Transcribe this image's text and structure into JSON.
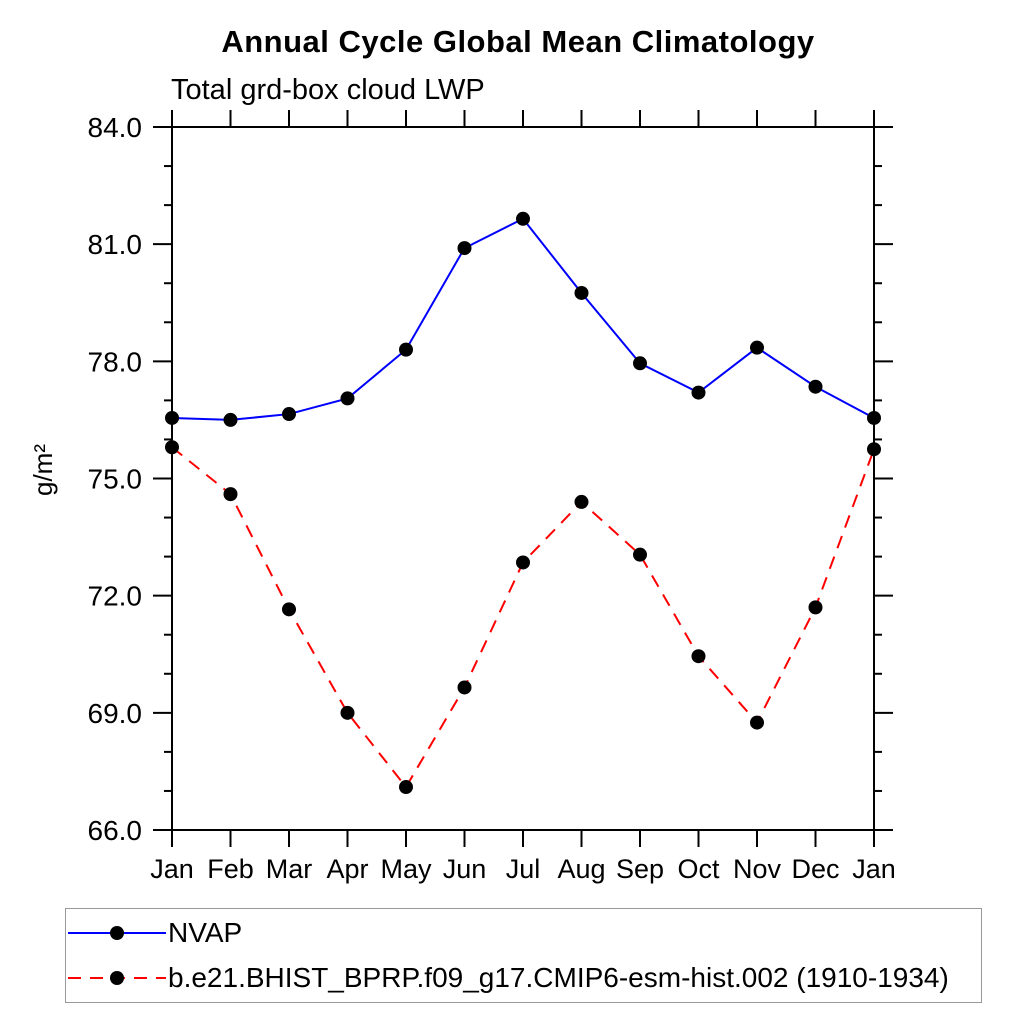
{
  "chart_data": {
    "type": "line",
    "title": "Annual Cycle Global Mean Climatology",
    "subtitle": "Total grd-box cloud LWP",
    "ylabel": "g/m²",
    "xlabel": "",
    "categories": [
      "Jan",
      "Feb",
      "Mar",
      "Apr",
      "May",
      "Jun",
      "Jul",
      "Aug",
      "Sep",
      "Oct",
      "Nov",
      "Dec",
      "Jan"
    ],
    "ylim": [
      66.0,
      84.0
    ],
    "y_major_step": 3.0,
    "y_minor_step": 1.0,
    "y_tick_labels": [
      "66.0",
      "69.0",
      "72.0",
      "75.0",
      "78.0",
      "81.0",
      "84.0"
    ],
    "grid": false,
    "legend_position": "bottom-left-box",
    "series": [
      {
        "name": "NVAP",
        "color": "#0000ff",
        "line_style": "solid",
        "marker": "filled-circle",
        "marker_color": "#000000",
        "values": [
          76.55,
          76.5,
          76.65,
          77.05,
          78.3,
          80.9,
          81.65,
          79.75,
          77.95,
          77.2,
          78.35,
          77.35,
          76.55
        ]
      },
      {
        "name": "b.e21.BHIST_BPRP.f09_g17.CMIP6-esm-hist.002 (1910-1934)",
        "color": "#ff0000",
        "line_style": "dashed",
        "marker": "filled-circle",
        "marker_color": "#000000",
        "values": [
          75.8,
          74.6,
          71.65,
          69.0,
          67.1,
          69.65,
          72.85,
          74.4,
          73.05,
          70.45,
          68.75,
          71.7,
          75.75
        ]
      }
    ]
  },
  "colors": {
    "axis": "#000000",
    "text": "#000000",
    "legend_border": "#999999",
    "background": "#ffffff"
  }
}
